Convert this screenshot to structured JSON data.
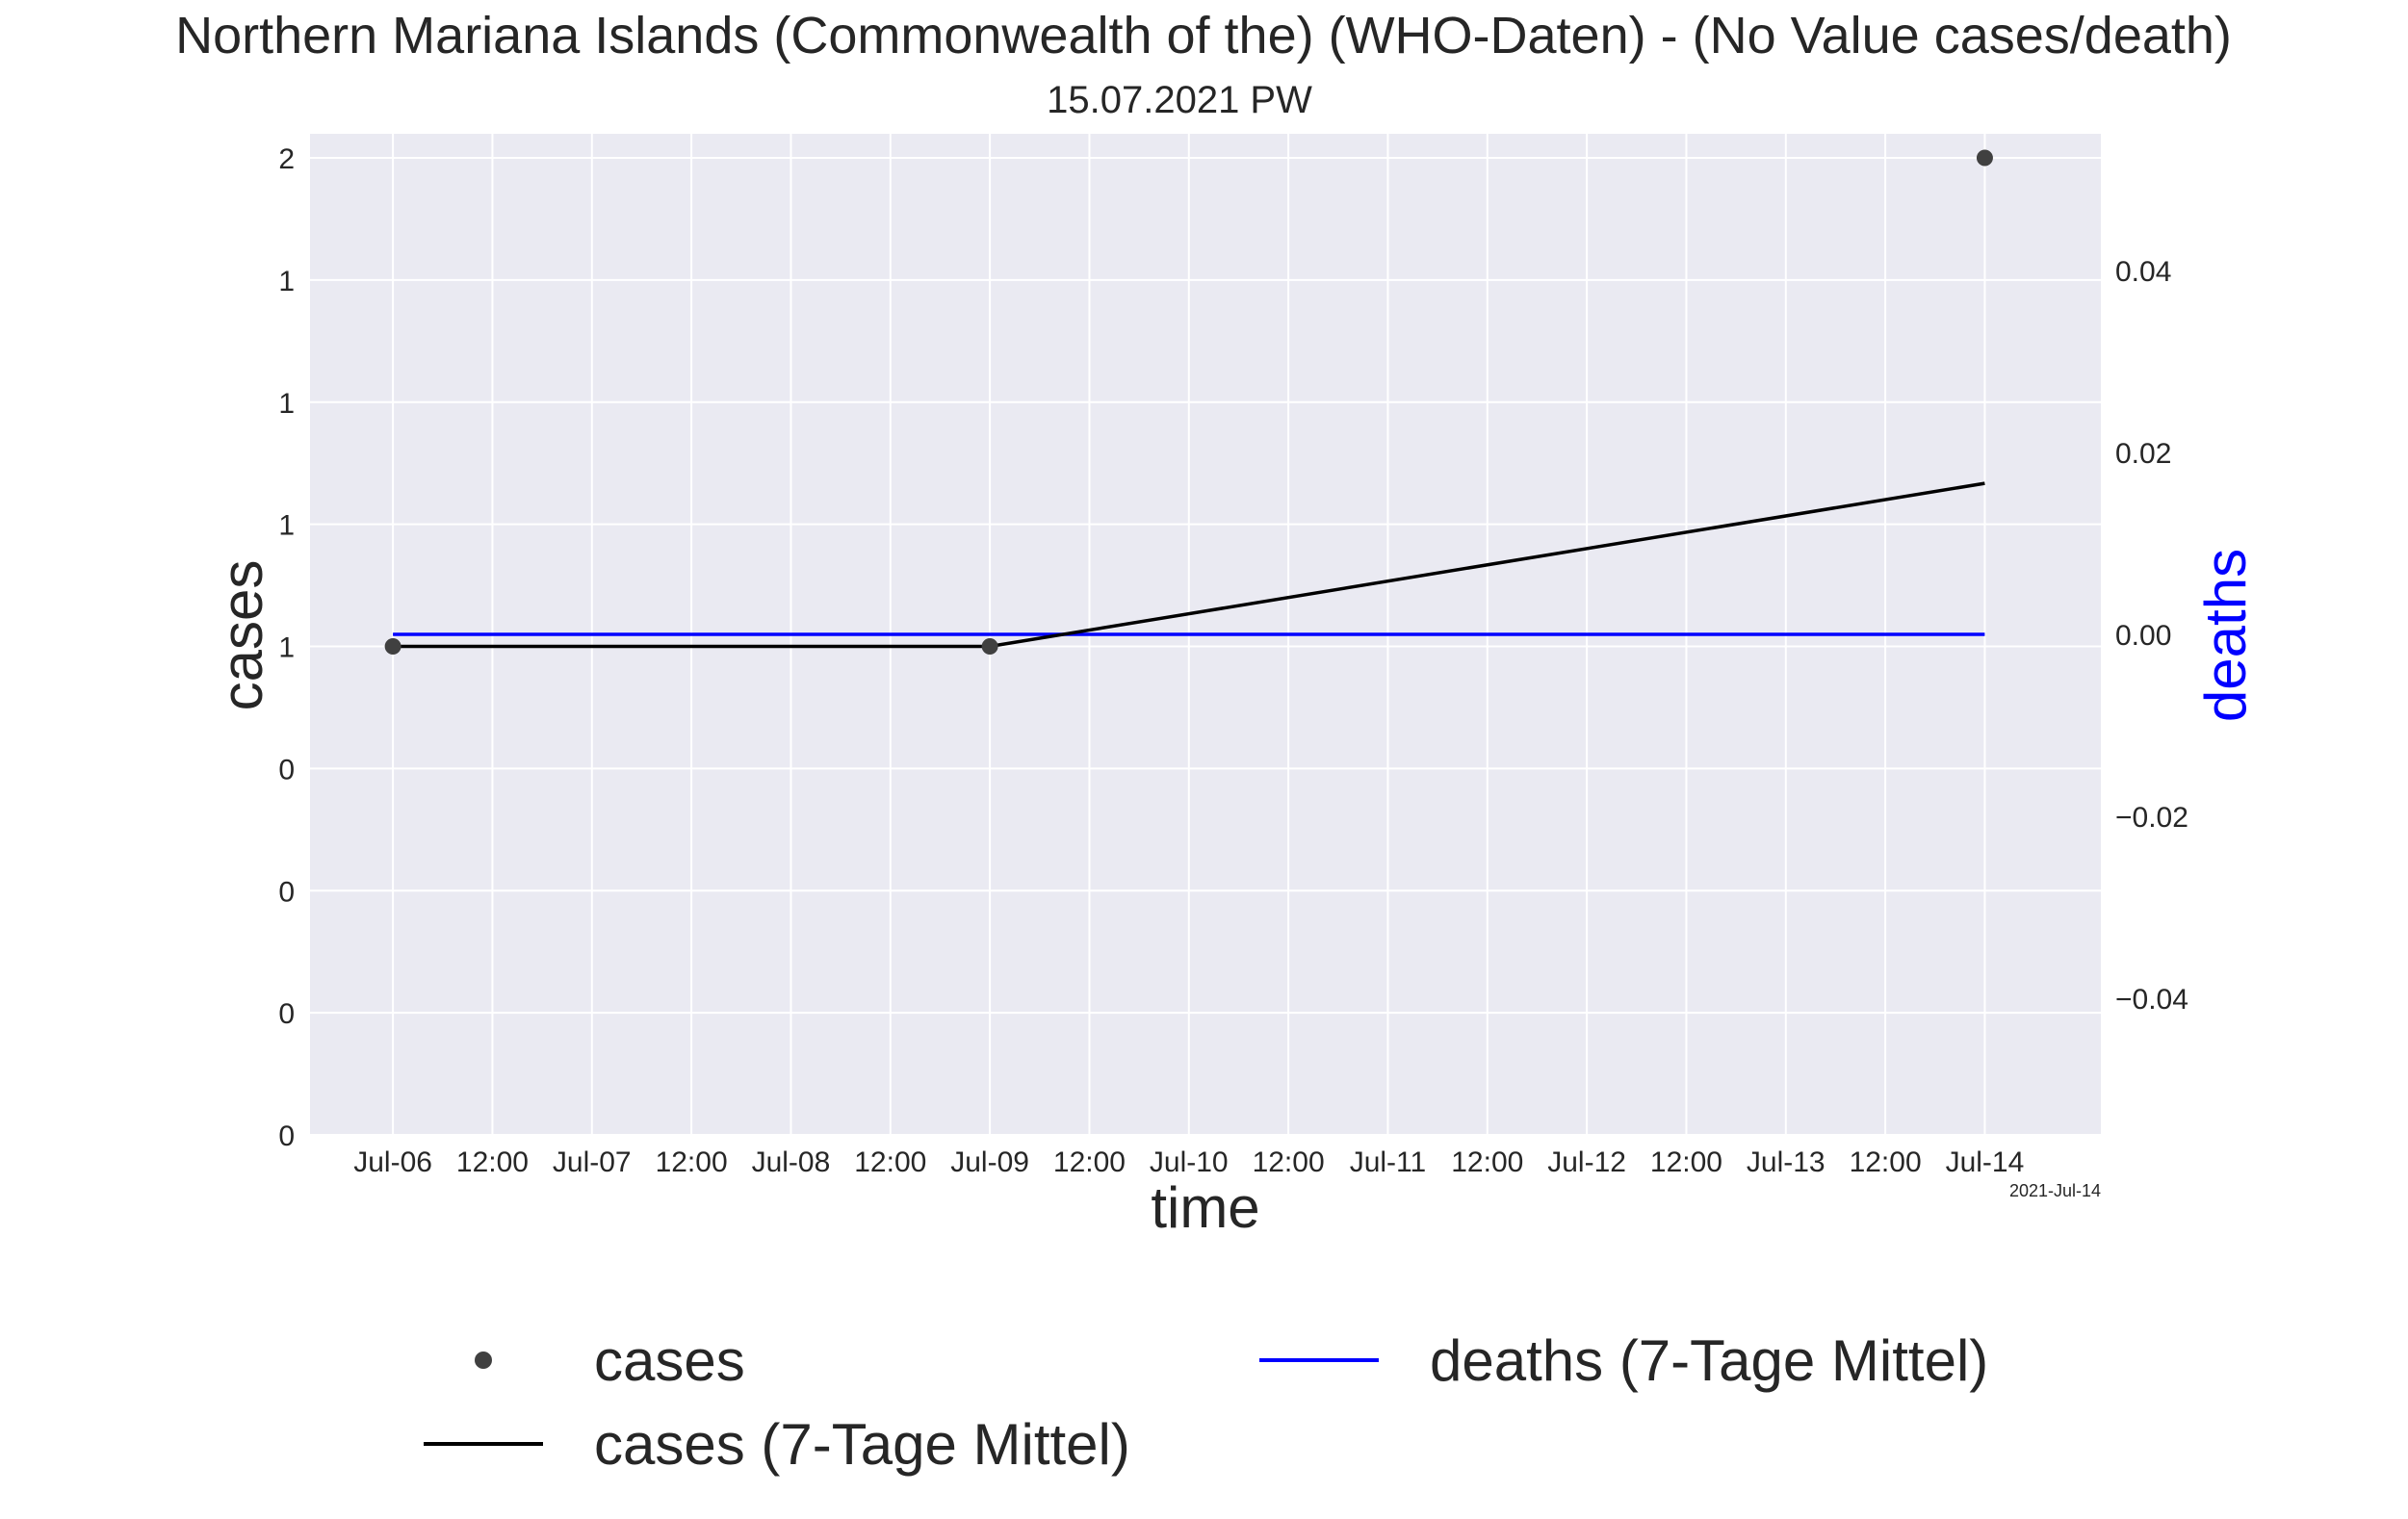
{
  "chart_data": {
    "type": "line",
    "title": "Northern Mariana Islands (Commonwealth of the) (WHO-Daten) - (No Value cases/death)",
    "subtitle": "15.07.2021 PW",
    "xlabel": "time",
    "ylabel": "cases",
    "ylabel_right": "deaths",
    "x_offset_label": "2021-Jul-14",
    "x_range": [
      "2021-07-05T14:00",
      "2021-07-14T14:00"
    ],
    "x_ticks": [
      {
        "t": "2021-07-06T00:00",
        "label": "Jul-06"
      },
      {
        "t": "2021-07-06T12:00",
        "label": "12:00"
      },
      {
        "t": "2021-07-07T00:00",
        "label": "Jul-07"
      },
      {
        "t": "2021-07-07T12:00",
        "label": "12:00"
      },
      {
        "t": "2021-07-08T00:00",
        "label": "Jul-08"
      },
      {
        "t": "2021-07-08T12:00",
        "label": "12:00"
      },
      {
        "t": "2021-07-09T00:00",
        "label": "Jul-09"
      },
      {
        "t": "2021-07-09T12:00",
        "label": "12:00"
      },
      {
        "t": "2021-07-10T00:00",
        "label": "Jul-10"
      },
      {
        "t": "2021-07-10T12:00",
        "label": "12:00"
      },
      {
        "t": "2021-07-11T00:00",
        "label": "Jul-11"
      },
      {
        "t": "2021-07-11T12:00",
        "label": "12:00"
      },
      {
        "t": "2021-07-12T00:00",
        "label": "Jul-12"
      },
      {
        "t": "2021-07-12T12:00",
        "label": "12:00"
      },
      {
        "t": "2021-07-13T00:00",
        "label": "Jul-13"
      },
      {
        "t": "2021-07-13T12:00",
        "label": "12:00"
      },
      {
        "t": "2021-07-14T00:00",
        "label": "Jul-14"
      }
    ],
    "ylim": [
      0,
      1.6
    ],
    "y_ticks": [
      {
        "v": 1.6,
        "label": "2"
      },
      {
        "v": 1.4,
        "label": "1"
      },
      {
        "v": 1.2,
        "label": "1"
      },
      {
        "v": 1.0,
        "label": "1"
      },
      {
        "v": 0.8,
        "label": "1"
      },
      {
        "v": 0.6,
        "label": "0"
      },
      {
        "v": 0.4,
        "label": "0"
      },
      {
        "v": 0.2,
        "label": "0"
      },
      {
        "v": 0.0,
        "label": "0"
      }
    ],
    "ylim_right": [
      -0.055,
      0.055
    ],
    "y_ticks_right": [
      {
        "v": 0.04,
        "label": "0.04"
      },
      {
        "v": 0.02,
        "label": "0.02"
      },
      {
        "v": 0.0,
        "label": "0.00"
      },
      {
        "v": -0.02,
        "label": "−0.02"
      },
      {
        "v": -0.04,
        "label": "−0.04"
      }
    ],
    "grid": true,
    "legend_position": "below",
    "series": [
      {
        "name": "cases",
        "kind": "scatter",
        "axis": "left",
        "color": "#404040",
        "points": [
          {
            "x": "2021-07-06",
            "y": 0.8
          },
          {
            "x": "2021-07-09",
            "y": 0.8
          },
          {
            "x": "2021-07-14",
            "y": 1.6
          }
        ]
      },
      {
        "name": "cases (7-Tage Mittel)",
        "kind": "line",
        "axis": "left",
        "color": "#000000",
        "points": [
          {
            "x": "2021-07-06",
            "y": 0.8
          },
          {
            "x": "2021-07-09",
            "y": 0.8
          },
          {
            "x": "2021-07-14",
            "y": 1.067
          }
        ]
      },
      {
        "name": "deaths (7-Tage Mittel)",
        "kind": "line",
        "axis": "right",
        "color": "#0000ff",
        "points": [
          {
            "x": "2021-07-06",
            "y": 0.0
          },
          {
            "x": "2021-07-14",
            "y": 0.0
          }
        ]
      }
    ]
  }
}
